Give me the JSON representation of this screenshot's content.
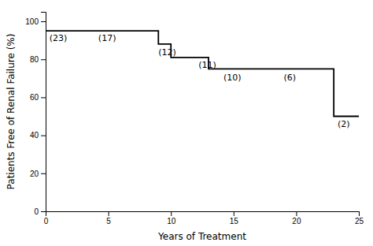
{
  "chart_data": {
    "type": "line",
    "x": [
      0,
      9,
      9,
      10,
      10,
      13,
      13,
      14,
      14,
      23,
      23,
      25
    ],
    "values": [
      95,
      95,
      88,
      88,
      81,
      81,
      75,
      75,
      75,
      75,
      50,
      50
    ],
    "color": "#000000",
    "annotations": [
      {
        "text": "(23)",
        "x": 0.3,
        "y": 93.5
      },
      {
        "text": "(17)",
        "x": 4.2,
        "y": 93.5
      },
      {
        "text": "(12)",
        "x": 9.0,
        "y": 86.0
      },
      {
        "text": "(11)",
        "x": 12.2,
        "y": 79.0
      },
      {
        "text": "(10)",
        "x": 14.2,
        "y": 72.5
      },
      {
        "text": "(6)",
        "x": 19.0,
        "y": 72.5
      },
      {
        "text": "(2)",
        "x": 23.3,
        "y": 48.0
      }
    ],
    "xlabel": "Years of Treatment",
    "ylabel": "Patients Free of Renal Failure (%)",
    "xlim": [
      0,
      25
    ],
    "ylim": [
      0,
      105
    ],
    "xticks": [
      0,
      5,
      10,
      15,
      20,
      25
    ],
    "yticks": [
      0,
      20,
      40,
      60,
      80,
      100
    ]
  }
}
